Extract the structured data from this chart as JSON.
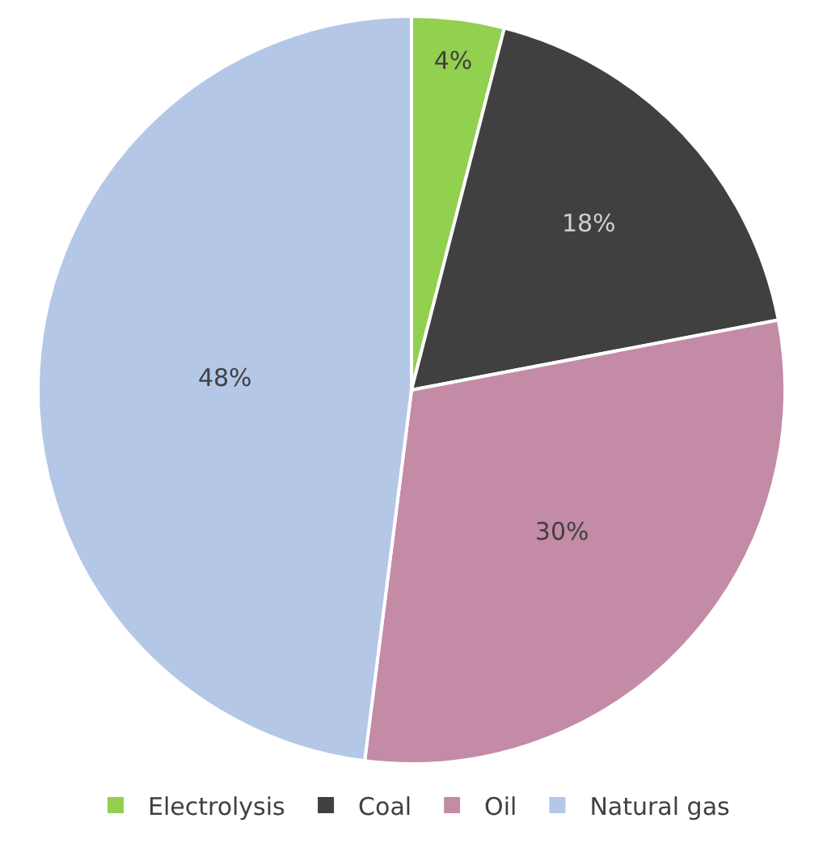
{
  "chart_data": {
    "type": "pie",
    "categories": [
      "Electrolysis",
      "Coal",
      "Oil",
      "Natural gas"
    ],
    "values": [
      4,
      18,
      30,
      48
    ],
    "colors": [
      "#92d050",
      "#404040",
      "#c48ba6",
      "#b4c7e7"
    ],
    "value_labels": [
      "4%",
      "18%",
      "30%",
      "48%"
    ],
    "legend": "bottom"
  }
}
